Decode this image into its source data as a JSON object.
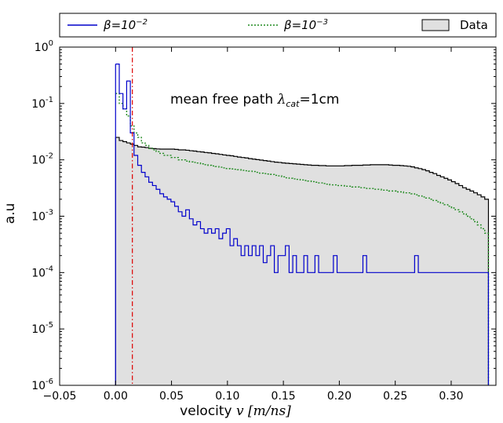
{
  "chart_data": {
    "type": "step-histogram",
    "xlabel_text": "velocity ",
    "xlabel_math": "v [m/ns]",
    "ylabel": "a.u",
    "annotation_text": "mean free path ",
    "annotation_math": "λ",
    "annotation_sub": "cat",
    "annotation_tail": "=1cm",
    "xlim": [
      -0.05,
      0.34
    ],
    "ylim": [
      1e-06,
      1
    ],
    "yscale": "log",
    "xticks": [
      -0.05,
      0.0,
      0.05,
      0.1,
      0.15,
      0.2,
      0.25,
      0.3
    ],
    "xtick_labels": [
      "−0.05",
      "0.00",
      "0.05",
      "0.10",
      "0.15",
      "0.20",
      "0.25",
      "0.30"
    ],
    "yticks": [
      {
        "exp": 0,
        "label": "10",
        "sup": "0"
      },
      {
        "exp": -1,
        "label": "10",
        "sup": "-1"
      },
      {
        "exp": -2,
        "label": "10",
        "sup": "-2"
      },
      {
        "exp": -3,
        "label": "10",
        "sup": "-3"
      },
      {
        "exp": -4,
        "label": "10",
        "sup": "-4"
      },
      {
        "exp": -5,
        "label": "10",
        "sup": "-5"
      },
      {
        "exp": -6,
        "label": "10",
        "sup": "-6"
      }
    ],
    "legend": {
      "placement": "top, above plot",
      "items": [
        {
          "label_base": "β=10",
          "label_sup": "−2",
          "style": "solid",
          "color": "#0000cc"
        },
        {
          "label_base": "β=10",
          "label_sup": "−3",
          "style": "dotted",
          "color": "#228b22"
        },
        {
          "label": "Data",
          "style": "filled",
          "color": "#e0e0e0"
        }
      ]
    },
    "vline": {
      "x": 0.015,
      "color": "#dd0000",
      "style": "dash-dot"
    },
    "bin_width": 0.0033,
    "x_start": 0.0,
    "x_end": 0.333,
    "series": [
      {
        "name": "Data",
        "color": "#000000",
        "fill": "#e0e0e0",
        "values": [
          0.025,
          0.022,
          0.021,
          0.02,
          0.019,
          0.018,
          0.017,
          0.0168,
          0.0165,
          0.016,
          0.0158,
          0.0156,
          0.0155,
          0.0155,
          0.0155,
          0.0155,
          0.0153,
          0.015,
          0.015,
          0.0148,
          0.0145,
          0.0143,
          0.014,
          0.0138,
          0.0135,
          0.0133,
          0.013,
          0.0128,
          0.0125,
          0.0122,
          0.012,
          0.0118,
          0.0115,
          0.0112,
          0.011,
          0.0108,
          0.0105,
          0.0103,
          0.0101,
          0.0099,
          0.0097,
          0.0095,
          0.0093,
          0.0091,
          0.009,
          0.0088,
          0.0087,
          0.0086,
          0.0085,
          0.0084,
          0.0083,
          0.0082,
          0.0081,
          0.008,
          0.008,
          0.0079,
          0.0079,
          0.0078,
          0.0078,
          0.0078,
          0.0078,
          0.0078,
          0.0079,
          0.0079,
          0.008,
          0.008,
          0.008,
          0.0081,
          0.0081,
          0.0082,
          0.0082,
          0.0082,
          0.0082,
          0.0082,
          0.0081,
          0.008,
          0.008,
          0.0079,
          0.0078,
          0.0077,
          0.0075,
          0.0072,
          0.007,
          0.0067,
          0.0064,
          0.006,
          0.0057,
          0.0053,
          0.005,
          0.0047,
          0.0044,
          0.0041,
          0.0038,
          0.0035,
          0.0032,
          0.003,
          0.0028,
          0.0026,
          0.0024,
          0.0022,
          0.002
        ]
      },
      {
        "name": "β=10⁻²",
        "color": "#0000cc",
        "values": [
          0.5,
          0.15,
          0.08,
          0.25,
          0.03,
          0.012,
          0.008,
          0.006,
          0.005,
          0.004,
          0.0035,
          0.003,
          0.0025,
          0.0022,
          0.002,
          0.0018,
          0.0015,
          0.0012,
          0.001,
          0.0013,
          0.0009,
          0.0007,
          0.0008,
          0.0006,
          0.0005,
          0.0006,
          0.0005,
          0.0006,
          0.0004,
          0.0005,
          0.0006,
          0.0003,
          0.0004,
          0.0003,
          0.0002,
          0.0003,
          0.0002,
          0.0003,
          0.0002,
          0.0003,
          0.00015,
          0.0002,
          0.0003,
          0.0001,
          0.0002,
          0.0002,
          0.0003,
          0.0001,
          0.0002,
          0.0001,
          0.0001,
          0.0002,
          0.0001,
          0.0001,
          0.0002,
          0.0001,
          0.0001,
          0.0001,
          0.0001,
          0.0002,
          0.0001,
          0.0001,
          0.0001,
          0.0001,
          0.0001,
          0.0001,
          0.0001,
          0.0002,
          0.0001,
          0.0001,
          0.0001,
          0.0001,
          0.0001,
          0.0001,
          0.0001,
          0.0001,
          0.0001,
          0.0001,
          0.0001,
          0.0001,
          0.0001,
          0.0002,
          0.0001,
          0.0001,
          0.0001,
          0.0001,
          0.0001,
          0.0001,
          0.0001,
          0.0001,
          0.0001,
          0.0001,
          0.0001,
          0.0001,
          0.0001,
          0.0001,
          0.0001,
          0.0001,
          0.0001,
          0.0001,
          0.0001
        ]
      },
      {
        "name": "β=10⁻³",
        "color": "#228b22",
        "values": [
          0.15,
          0.1,
          0.08,
          0.06,
          0.04,
          0.03,
          0.025,
          0.02,
          0.018,
          0.016,
          0.015,
          0.014,
          0.013,
          0.012,
          0.012,
          0.011,
          0.011,
          0.01,
          0.01,
          0.0095,
          0.0092,
          0.009,
          0.0088,
          0.0085,
          0.0082,
          0.008,
          0.0078,
          0.0076,
          0.0074,
          0.0072,
          0.007,
          0.0069,
          0.0068,
          0.0067,
          0.0065,
          0.0064,
          0.0063,
          0.0062,
          0.006,
          0.0058,
          0.0057,
          0.0056,
          0.0055,
          0.0053,
          0.0052,
          0.005,
          0.0048,
          0.0047,
          0.0046,
          0.0045,
          0.0044,
          0.0043,
          0.0042,
          0.0041,
          0.004,
          0.0039,
          0.0038,
          0.0037,
          0.0036,
          0.0036,
          0.0035,
          0.0035,
          0.0034,
          0.0034,
          0.0033,
          0.0033,
          0.0032,
          0.0032,
          0.0031,
          0.0031,
          0.003,
          0.003,
          0.0029,
          0.0029,
          0.0028,
          0.0028,
          0.0027,
          0.0027,
          0.0026,
          0.0026,
          0.0025,
          0.0024,
          0.0023,
          0.0022,
          0.0021,
          0.002,
          0.0019,
          0.0018,
          0.0017,
          0.0016,
          0.0015,
          0.0014,
          0.0013,
          0.0012,
          0.0011,
          0.001,
          0.0009,
          0.0008,
          0.0007,
          0.0006,
          0.0005
        ]
      }
    ]
  }
}
